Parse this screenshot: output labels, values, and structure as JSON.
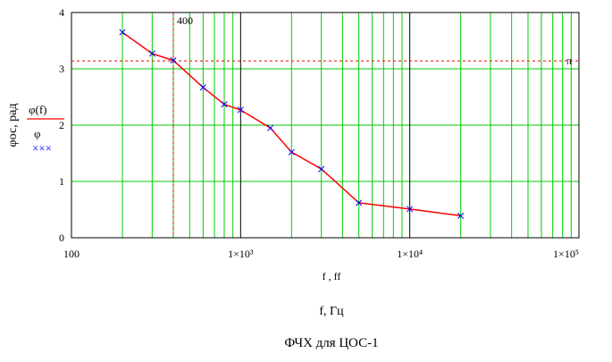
{
  "chart_data": {
    "type": "line",
    "title": "ФЧХ для ЦОС-1",
    "xlabel_tick_axis": "f , ff",
    "xlabel": "f, Гц",
    "ylabel": "φос, рад",
    "xscale": "log",
    "xlim": [
      100,
      100000
    ],
    "ylim": [
      0,
      4
    ],
    "grid": true,
    "x_ticks": [
      {
        "value": 100,
        "label": "100"
      },
      {
        "value": 1000,
        "label": "1×10³"
      },
      {
        "value": 10000,
        "label": "1×10⁴"
      },
      {
        "value": 100000,
        "label": "1×10⁵"
      }
    ],
    "y_ticks": [
      {
        "value": 0,
        "label": "0"
      },
      {
        "value": 1,
        "label": "1"
      },
      {
        "value": 2,
        "label": "2"
      },
      {
        "value": 3,
        "label": "3"
      },
      {
        "value": 4,
        "label": "4"
      }
    ],
    "series": [
      {
        "name": "φ(f)",
        "color": "#ff0000",
        "style": "solid-line",
        "x": [
          200,
          300,
          400,
          600,
          800,
          1000,
          1500,
          2000,
          3000,
          5000,
          10000,
          20000
        ],
        "y": [
          3.65,
          3.27,
          3.15,
          2.67,
          2.37,
          2.27,
          1.95,
          1.52,
          1.22,
          0.62,
          0.51,
          0.39
        ]
      },
      {
        "name": "φ",
        "color": "#0000ff",
        "style": "x-markers",
        "x": [
          200,
          300,
          400,
          600,
          800,
          1000,
          1500,
          2000,
          3000,
          5000,
          10000,
          20000
        ],
        "y": [
          3.65,
          3.27,
          3.15,
          2.67,
          2.37,
          2.27,
          1.95,
          1.52,
          1.22,
          0.62,
          0.51,
          0.39
        ]
      }
    ],
    "reference_lines": [
      {
        "orientation": "horizontal",
        "value": 3.14159,
        "label": "π",
        "color": "#ff0000"
      },
      {
        "orientation": "vertical",
        "value": 400,
        "label": "400",
        "color": "#ff0000"
      }
    ],
    "legend": {
      "position": "left",
      "entries": [
        "φ(f)",
        "φ",
        "×××"
      ]
    }
  },
  "colors": {
    "grid_minor": "#00cc00",
    "grid_major": "#000000",
    "frame": "#000000",
    "curve": "#ff0000",
    "markers": "#0000ff",
    "reference": "#ff0000"
  }
}
